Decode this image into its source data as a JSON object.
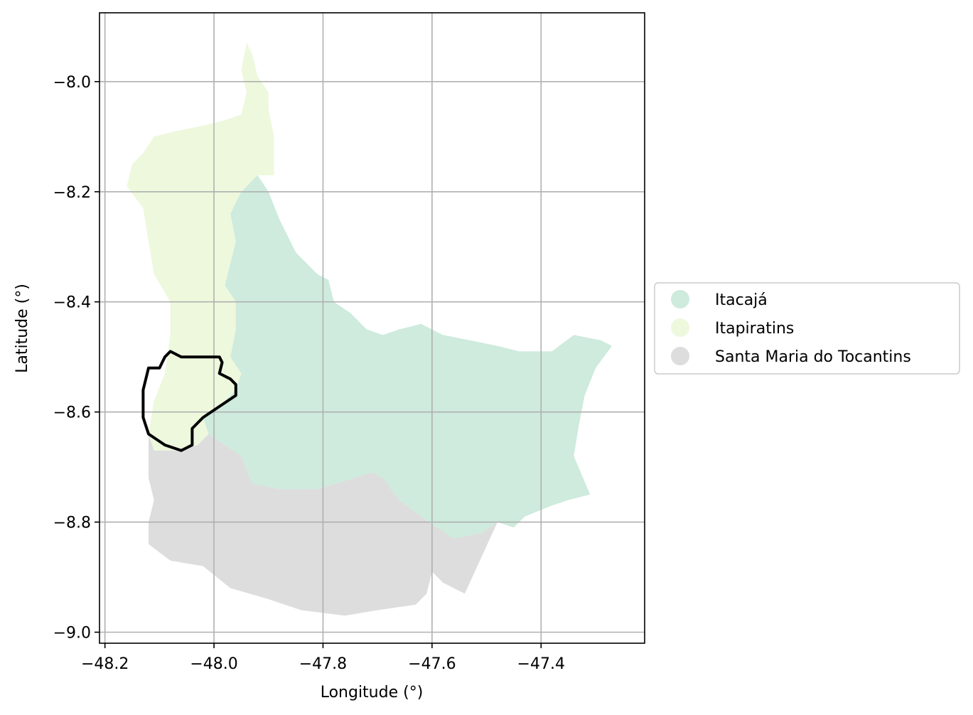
{
  "chart_data": {
    "type": "map",
    "xlabel": "Longitude (°)",
    "ylabel": "Latitude (°)",
    "xlim": [
      -48.21,
      -47.21
    ],
    "ylim": [
      -9.02,
      -7.875
    ],
    "x_ticks": [
      {
        "value": -48.2,
        "label": "−48.2"
      },
      {
        "value": -48.0,
        "label": "−48.0"
      },
      {
        "value": -47.8,
        "label": "−47.8"
      },
      {
        "value": -47.6,
        "label": "−47.6"
      },
      {
        "value": -47.4,
        "label": "−47.4"
      }
    ],
    "y_ticks": [
      {
        "value": -8.0,
        "label": "−8.0"
      },
      {
        "value": -8.2,
        "label": "−8.2"
      },
      {
        "value": -8.4,
        "label": "−8.4"
      },
      {
        "value": -8.6,
        "label": "−8.6"
      },
      {
        "value": -8.8,
        "label": "−8.8"
      },
      {
        "value": -9.0,
        "label": "−9.0"
      }
    ],
    "grid": true,
    "legend_position": "center-right outside",
    "regions": [
      {
        "name": "Santa Maria do Tocantins",
        "color": "#dddddd",
        "polygon": [
          [
            -48.12,
            -8.64
          ],
          [
            -48.11,
            -8.67
          ],
          [
            -48.07,
            -8.67
          ],
          [
            -48.03,
            -8.66
          ],
          [
            -48.01,
            -8.64
          ],
          [
            -47.95,
            -8.68
          ],
          [
            -47.93,
            -8.73
          ],
          [
            -47.88,
            -8.74
          ],
          [
            -47.81,
            -8.74
          ],
          [
            -47.71,
            -8.71
          ],
          [
            -47.69,
            -8.72
          ],
          [
            -47.66,
            -8.76
          ],
          [
            -47.62,
            -8.79
          ],
          [
            -47.56,
            -8.83
          ],
          [
            -47.51,
            -8.82
          ],
          [
            -47.48,
            -8.8
          ],
          [
            -47.54,
            -8.93
          ],
          [
            -47.58,
            -8.91
          ],
          [
            -47.6,
            -8.89
          ],
          [
            -47.61,
            -8.93
          ],
          [
            -47.63,
            -8.95
          ],
          [
            -47.7,
            -8.96
          ],
          [
            -47.76,
            -8.97
          ],
          [
            -47.84,
            -8.96
          ],
          [
            -47.9,
            -8.94
          ],
          [
            -47.97,
            -8.92
          ],
          [
            -48.02,
            -8.88
          ],
          [
            -48.08,
            -8.87
          ],
          [
            -48.12,
            -8.84
          ],
          [
            -48.12,
            -8.8
          ],
          [
            -48.11,
            -8.76
          ],
          [
            -48.12,
            -8.72
          ]
        ]
      },
      {
        "name": "Itacajá",
        "color": "#ceebdd",
        "polygon": [
          [
            -47.92,
            -8.17
          ],
          [
            -47.9,
            -8.2
          ],
          [
            -47.88,
            -8.25
          ],
          [
            -47.85,
            -8.31
          ],
          [
            -47.83,
            -8.33
          ],
          [
            -47.81,
            -8.35
          ],
          [
            -47.79,
            -8.36
          ],
          [
            -47.78,
            -8.4
          ],
          [
            -47.75,
            -8.42
          ],
          [
            -47.72,
            -8.45
          ],
          [
            -47.69,
            -8.46
          ],
          [
            -47.66,
            -8.45
          ],
          [
            -47.62,
            -8.44
          ],
          [
            -47.58,
            -8.46
          ],
          [
            -47.53,
            -8.47
          ],
          [
            -47.48,
            -8.48
          ],
          [
            -47.44,
            -8.49
          ],
          [
            -47.38,
            -8.49
          ],
          [
            -47.34,
            -8.46
          ],
          [
            -47.29,
            -8.47
          ],
          [
            -47.27,
            -8.48
          ],
          [
            -47.3,
            -8.52
          ],
          [
            -47.32,
            -8.57
          ],
          [
            -47.33,
            -8.62
          ],
          [
            -47.34,
            -8.68
          ],
          [
            -47.31,
            -8.75
          ],
          [
            -47.35,
            -8.76
          ],
          [
            -47.38,
            -8.77
          ],
          [
            -47.43,
            -8.79
          ],
          [
            -47.45,
            -8.81
          ],
          [
            -47.48,
            -8.8
          ],
          [
            -47.51,
            -8.82
          ],
          [
            -47.56,
            -8.83
          ],
          [
            -47.62,
            -8.79
          ],
          [
            -47.66,
            -8.76
          ],
          [
            -47.69,
            -8.72
          ],
          [
            -47.71,
            -8.71
          ],
          [
            -47.81,
            -8.74
          ],
          [
            -47.88,
            -8.74
          ],
          [
            -47.93,
            -8.73
          ],
          [
            -47.95,
            -8.68
          ],
          [
            -48.01,
            -8.64
          ],
          [
            -48.02,
            -8.61
          ],
          [
            -47.99,
            -8.59
          ],
          [
            -47.96,
            -8.56
          ],
          [
            -47.95,
            -8.53
          ],
          [
            -47.97,
            -8.5
          ],
          [
            -47.96,
            -8.45
          ],
          [
            -47.96,
            -8.4
          ],
          [
            -47.98,
            -8.37
          ],
          [
            -47.97,
            -8.33
          ],
          [
            -47.96,
            -8.29
          ],
          [
            -47.97,
            -8.24
          ],
          [
            -47.95,
            -8.2
          ]
        ]
      },
      {
        "name": "Itapiratins",
        "color": "#edf8dd",
        "polygon": [
          [
            -47.94,
            -7.93
          ],
          [
            -47.93,
            -7.95
          ],
          [
            -47.92,
            -7.99
          ],
          [
            -47.9,
            -8.02
          ],
          [
            -47.9,
            -8.05
          ],
          [
            -47.89,
            -8.1
          ],
          [
            -47.89,
            -8.13
          ],
          [
            -47.89,
            -8.17
          ],
          [
            -47.92,
            -8.17
          ],
          [
            -47.95,
            -8.2
          ],
          [
            -47.97,
            -8.24
          ],
          [
            -47.96,
            -8.29
          ],
          [
            -47.97,
            -8.33
          ],
          [
            -47.98,
            -8.37
          ],
          [
            -47.96,
            -8.4
          ],
          [
            -47.96,
            -8.45
          ],
          [
            -47.97,
            -8.5
          ],
          [
            -47.95,
            -8.53
          ],
          [
            -47.96,
            -8.56
          ],
          [
            -47.99,
            -8.59
          ],
          [
            -48.02,
            -8.61
          ],
          [
            -48.01,
            -8.64
          ],
          [
            -48.03,
            -8.66
          ],
          [
            -48.07,
            -8.67
          ],
          [
            -48.11,
            -8.67
          ],
          [
            -48.12,
            -8.64
          ],
          [
            -48.11,
            -8.58
          ],
          [
            -48.09,
            -8.53
          ],
          [
            -48.08,
            -8.46
          ],
          [
            -48.08,
            -8.4
          ],
          [
            -48.11,
            -8.35
          ],
          [
            -48.12,
            -8.29
          ],
          [
            -48.13,
            -8.23
          ],
          [
            -48.16,
            -8.19
          ],
          [
            -48.15,
            -8.15
          ],
          [
            -48.13,
            -8.13
          ],
          [
            -48.11,
            -8.1
          ],
          [
            -48.07,
            -8.09
          ],
          [
            -48.02,
            -8.08
          ],
          [
            -47.98,
            -8.07
          ],
          [
            -47.95,
            -8.06
          ],
          [
            -47.94,
            -8.02
          ],
          [
            -47.95,
            -7.98
          ]
        ]
      }
    ],
    "highlight_outline": {
      "color": "#000000",
      "polygon": [
        [
          -48.08,
          -8.49
        ],
        [
          -48.06,
          -8.5
        ],
        [
          -48.04,
          -8.5
        ],
        [
          -48.01,
          -8.5
        ],
        [
          -47.99,
          -8.5
        ],
        [
          -47.985,
          -8.51
        ],
        [
          -47.99,
          -8.53
        ],
        [
          -47.97,
          -8.54
        ],
        [
          -47.96,
          -8.55
        ],
        [
          -47.96,
          -8.57
        ],
        [
          -47.99,
          -8.59
        ],
        [
          -48.02,
          -8.61
        ],
        [
          -48.04,
          -8.63
        ],
        [
          -48.04,
          -8.66
        ],
        [
          -48.06,
          -8.67
        ],
        [
          -48.09,
          -8.66
        ],
        [
          -48.12,
          -8.64
        ],
        [
          -48.13,
          -8.61
        ],
        [
          -48.13,
          -8.56
        ],
        [
          -48.12,
          -8.52
        ],
        [
          -48.1,
          -8.52
        ],
        [
          -48.09,
          -8.5
        ]
      ]
    }
  },
  "legend": {
    "entries": [
      {
        "label": "Itacajá",
        "color": "#ceebdd"
      },
      {
        "label": "Itapiratins",
        "color": "#edf8dd"
      },
      {
        "label": "Santa Maria do Tocantins",
        "color": "#dddddd"
      }
    ]
  }
}
